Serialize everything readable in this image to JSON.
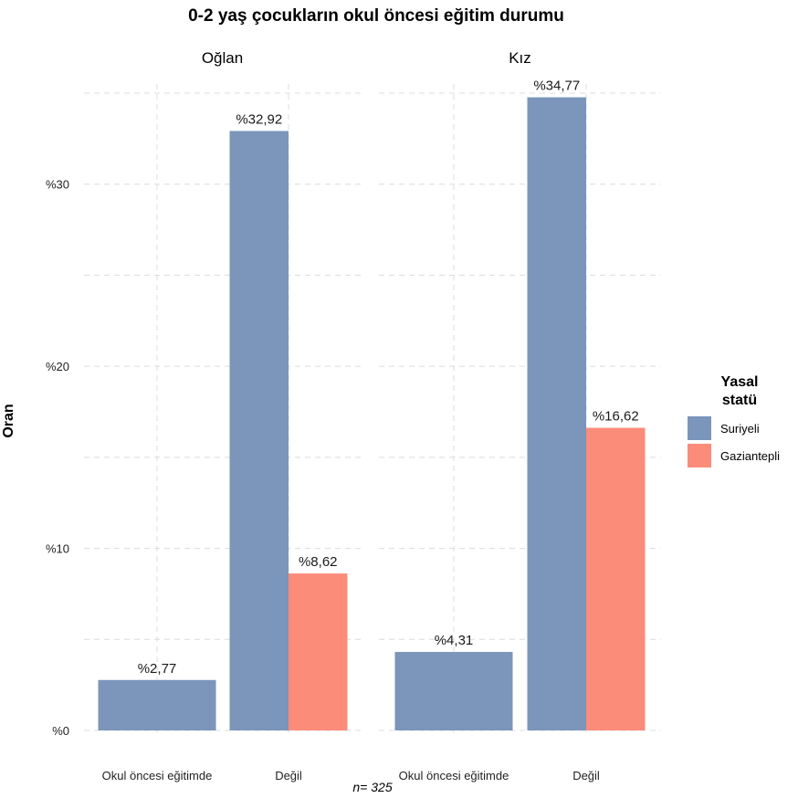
{
  "chart_data": {
    "type": "bar",
    "title": "0-2 yaş çocukların okul öncesi eğitim durumu",
    "ylabel": "Oran",
    "ylim": [
      0,
      35.5
    ],
    "yticks": [
      0,
      10,
      20,
      30
    ],
    "ytick_labels": [
      "%0",
      "%10",
      "%20",
      "%30"
    ],
    "grid": true,
    "legend_position": "right",
    "legend_title": [
      "Yasal",
      "statü"
    ],
    "note": "n= 325",
    "categories": [
      "Okul öncesi eğitimde",
      "Değil"
    ],
    "series": [
      {
        "name": "Suriyeli",
        "color": "#7b95bb"
      },
      {
        "name": "Gaziantepli",
        "color": "#fb8c7a"
      }
    ],
    "facets": [
      {
        "label": "Oğlan",
        "bars": [
          {
            "category": "Okul öncesi eğitimde",
            "values": [
              2.77,
              null
            ],
            "labels": [
              "%2,77",
              ""
            ]
          },
          {
            "category": "Değil",
            "values": [
              32.92,
              8.62
            ],
            "labels": [
              "%32,92",
              "%8,62"
            ]
          }
        ]
      },
      {
        "label": "Kız",
        "bars": [
          {
            "category": "Okul öncesi eğitimde",
            "values": [
              4.31,
              null
            ],
            "labels": [
              "%4,31",
              ""
            ]
          },
          {
            "category": "Değil",
            "values": [
              34.77,
              16.62
            ],
            "labels": [
              "%34,77",
              "%16,62"
            ]
          }
        ]
      }
    ]
  }
}
